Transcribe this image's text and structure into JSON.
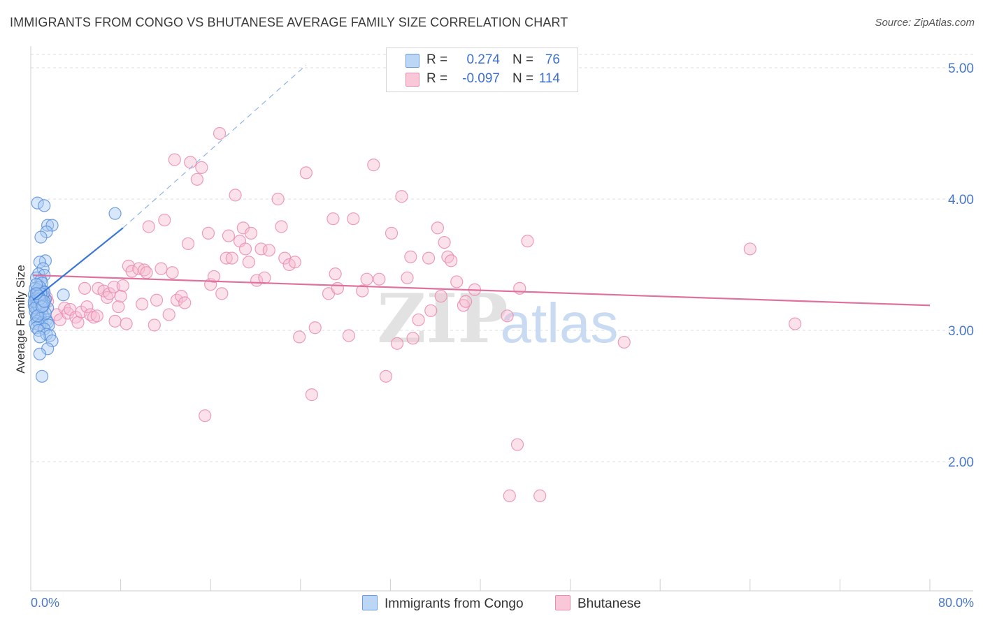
{
  "title": "IMMIGRANTS FROM CONGO VS BHUTANESE AVERAGE FAMILY SIZE CORRELATION CHART",
  "source": "Source: ZipAtlas.com",
  "watermark": {
    "zip": "ZIP",
    "atlas": "atlas"
  },
  "colors": {
    "blue": "#3a78d8",
    "blue_fill": "#a8c8f0",
    "pink": "#e0709c",
    "pink_fill": "#f5b8cc",
    "tick_text": "#4a78c8",
    "grid": "#dddddd"
  },
  "legend": {
    "r_label": "R =",
    "n_label": "N =",
    "congo": {
      "r": "0.274",
      "n": "76"
    },
    "bhutanese": {
      "r": "-0.097",
      "n": "114"
    }
  },
  "bottom_legend": {
    "congo": "Immigrants from Congo",
    "bhutanese": "Bhutanese"
  },
  "chart_data": {
    "type": "scatter",
    "title": "IMMIGRANTS FROM CONGO VS BHUTANESE AVERAGE FAMILY SIZE CORRELATION CHART",
    "xlabel": "",
    "ylabel": "Average Family Size",
    "xlim": [
      0,
      80
    ],
    "ylim": [
      1.0,
      5.1
    ],
    "y_ticks": [
      2.0,
      3.0,
      4.0,
      5.0
    ],
    "y_tick_labels": [
      "2.00",
      "3.00",
      "4.00",
      "5.00"
    ],
    "x_tick_labels": [
      "0.0%",
      "80.0%"
    ],
    "grid": true,
    "series": [
      {
        "name": "Immigrants from Congo",
        "r": 0.274,
        "n": 76,
        "trend": {
          "x": [
            0.2,
            8.2
          ],
          "y": [
            3.23,
            3.78
          ]
        },
        "trend_extended": {
          "x": [
            8.2,
            24.5
          ],
          "y": [
            3.78,
            5.02
          ]
        },
        "points": [
          [
            0.6,
            3.97
          ],
          [
            1.2,
            3.95
          ],
          [
            1.5,
            3.8
          ],
          [
            1.9,
            3.8
          ],
          [
            1.4,
            3.75
          ],
          [
            0.9,
            3.71
          ],
          [
            1.3,
            3.53
          ],
          [
            0.8,
            3.52
          ],
          [
            1.1,
            3.47
          ],
          [
            0.7,
            3.43
          ],
          [
            1.2,
            3.42
          ],
          [
            0.5,
            3.4
          ],
          [
            0.9,
            3.38
          ],
          [
            1.0,
            3.36
          ],
          [
            0.4,
            3.32
          ],
          [
            0.8,
            3.3
          ],
          [
            1.1,
            3.3
          ],
          [
            0.6,
            3.28
          ],
          [
            0.3,
            3.27
          ],
          [
            2.9,
            3.27
          ],
          [
            1.0,
            3.25
          ],
          [
            0.7,
            3.25
          ],
          [
            0.4,
            3.24
          ],
          [
            1.3,
            3.24
          ],
          [
            0.9,
            3.22
          ],
          [
            0.5,
            3.21
          ],
          [
            1.2,
            3.2
          ],
          [
            0.3,
            3.19
          ],
          [
            0.8,
            3.18
          ],
          [
            1.5,
            3.17
          ],
          [
            0.6,
            3.16
          ],
          [
            1.0,
            3.15
          ],
          [
            0.4,
            3.14
          ],
          [
            0.7,
            3.12
          ],
          [
            1.1,
            3.11
          ],
          [
            0.5,
            3.1
          ],
          [
            0.9,
            3.09
          ],
          [
            1.4,
            3.08
          ],
          [
            0.6,
            3.07
          ],
          [
            1.0,
            3.06
          ],
          [
            1.5,
            3.06
          ],
          [
            0.4,
            3.05
          ],
          [
            0.8,
            3.04
          ],
          [
            1.6,
            3.04
          ],
          [
            0.5,
            3.02
          ],
          [
            1.2,
            3.01
          ],
          [
            0.7,
            3.0
          ],
          [
            1.4,
            2.97
          ],
          [
            1.7,
            2.96
          ],
          [
            0.8,
            2.95
          ],
          [
            1.9,
            2.92
          ],
          [
            1.5,
            2.86
          ],
          [
            0.8,
            2.82
          ],
          [
            1.0,
            2.65
          ],
          [
            7.5,
            3.89
          ],
          [
            0.5,
            3.25
          ],
          [
            0.6,
            3.2
          ],
          [
            0.7,
            3.18
          ],
          [
            0.9,
            3.21
          ],
          [
            1.0,
            3.23
          ],
          [
            1.1,
            3.27
          ],
          [
            0.6,
            3.31
          ],
          [
            0.8,
            3.33
          ],
          [
            1.2,
            3.29
          ],
          [
            0.3,
            3.22
          ],
          [
            0.4,
            3.17
          ],
          [
            1.3,
            3.13
          ],
          [
            0.9,
            3.28
          ],
          [
            0.5,
            3.35
          ],
          [
            0.7,
            3.26
          ],
          [
            1.1,
            3.19
          ],
          [
            0.6,
            3.11
          ],
          [
            0.8,
            3.24
          ],
          [
            1.0,
            3.18
          ],
          [
            1.2,
            3.22
          ],
          [
            0.5,
            3.28
          ]
        ]
      },
      {
        "name": "Bhutanese",
        "r": -0.097,
        "n": 114,
        "trend": {
          "x": [
            0.2,
            80.0
          ],
          "y": [
            3.42,
            3.19
          ]
        },
        "points": [
          [
            1.0,
            3.27
          ],
          [
            1.4,
            3.25
          ],
          [
            0.9,
            3.22
          ],
          [
            1.5,
            3.22
          ],
          [
            2.3,
            3.12
          ],
          [
            2.6,
            3.08
          ],
          [
            3.0,
            3.17
          ],
          [
            3.3,
            3.13
          ],
          [
            3.5,
            3.16
          ],
          [
            4.0,
            3.1
          ],
          [
            4.2,
            3.06
          ],
          [
            4.5,
            3.14
          ],
          [
            5.0,
            3.18
          ],
          [
            5.3,
            3.12
          ],
          [
            5.6,
            3.1
          ],
          [
            5.9,
            3.11
          ],
          [
            6.0,
            3.32
          ],
          [
            6.5,
            3.3
          ],
          [
            6.8,
            3.25
          ],
          [
            7.0,
            3.28
          ],
          [
            7.4,
            3.33
          ],
          [
            7.5,
            3.07
          ],
          [
            7.8,
            3.18
          ],
          [
            8.2,
            3.34
          ],
          [
            8.5,
            3.05
          ],
          [
            8.7,
            3.49
          ],
          [
            9.0,
            3.45
          ],
          [
            9.6,
            3.47
          ],
          [
            9.9,
            3.2
          ],
          [
            10.1,
            3.46
          ],
          [
            10.3,
            3.44
          ],
          [
            10.5,
            3.79
          ],
          [
            11.0,
            3.04
          ],
          [
            11.2,
            3.23
          ],
          [
            11.6,
            3.47
          ],
          [
            11.9,
            3.84
          ],
          [
            12.3,
            3.12
          ],
          [
            12.6,
            3.44
          ],
          [
            12.8,
            4.3
          ],
          [
            13.0,
            3.23
          ],
          [
            13.4,
            3.26
          ],
          [
            13.7,
            3.21
          ],
          [
            14.0,
            3.66
          ],
          [
            14.2,
            4.28
          ],
          [
            14.8,
            4.15
          ],
          [
            15.2,
            4.24
          ],
          [
            15.5,
            2.35
          ],
          [
            15.8,
            3.74
          ],
          [
            16.0,
            3.35
          ],
          [
            16.3,
            3.41
          ],
          [
            16.8,
            4.5
          ],
          [
            17.0,
            3.28
          ],
          [
            17.4,
            3.55
          ],
          [
            17.6,
            3.72
          ],
          [
            17.9,
            3.55
          ],
          [
            18.2,
            4.03
          ],
          [
            18.6,
            3.68
          ],
          [
            18.9,
            3.78
          ],
          [
            19.1,
            3.62
          ],
          [
            19.4,
            3.52
          ],
          [
            19.6,
            3.74
          ],
          [
            20.1,
            3.38
          ],
          [
            20.5,
            3.62
          ],
          [
            20.8,
            3.4
          ],
          [
            21.2,
            3.61
          ],
          [
            22.0,
            4.0
          ],
          [
            22.3,
            3.79
          ],
          [
            22.6,
            3.55
          ],
          [
            23.0,
            3.5
          ],
          [
            23.5,
            3.52
          ],
          [
            23.9,
            2.95
          ],
          [
            24.5,
            4.2
          ],
          [
            25.0,
            2.51
          ],
          [
            25.3,
            3.02
          ],
          [
            26.5,
            3.28
          ],
          [
            26.9,
            3.85
          ],
          [
            27.1,
            3.43
          ],
          [
            27.3,
            3.32
          ],
          [
            28.3,
            2.96
          ],
          [
            28.7,
            3.85
          ],
          [
            29.5,
            3.3
          ],
          [
            29.9,
            3.39
          ],
          [
            30.5,
            4.26
          ],
          [
            31.0,
            3.39
          ],
          [
            31.6,
            2.65
          ],
          [
            32.1,
            3.74
          ],
          [
            32.6,
            2.9
          ],
          [
            33.0,
            4.02
          ],
          [
            33.5,
            3.4
          ],
          [
            33.8,
            3.56
          ],
          [
            34.0,
            2.94
          ],
          [
            34.5,
            3.08
          ],
          [
            35.4,
            3.55
          ],
          [
            35.6,
            3.15
          ],
          [
            36.2,
            3.78
          ],
          [
            36.5,
            3.26
          ],
          [
            36.8,
            3.67
          ],
          [
            37.1,
            3.56
          ],
          [
            37.4,
            3.53
          ],
          [
            37.9,
            3.37
          ],
          [
            38.5,
            3.19
          ],
          [
            38.7,
            3.22
          ],
          [
            39.5,
            3.31
          ],
          [
            42.4,
            3.11
          ],
          [
            42.6,
            1.74
          ],
          [
            43.3,
            2.13
          ],
          [
            43.5,
            3.32
          ],
          [
            44.2,
            3.68
          ],
          [
            45.3,
            1.74
          ],
          [
            52.8,
            2.91
          ],
          [
            64.0,
            3.62
          ],
          [
            68.0,
            3.05
          ],
          [
            4.8,
            3.32
          ],
          [
            8.0,
            3.26
          ]
        ]
      }
    ]
  }
}
